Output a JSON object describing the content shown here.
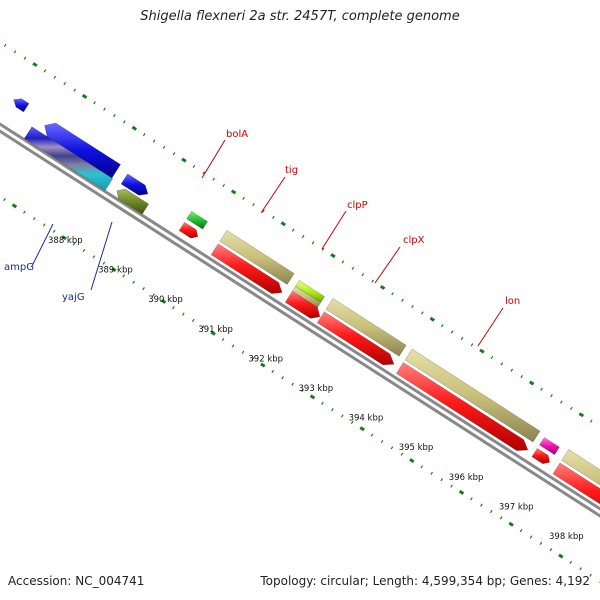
{
  "header": {
    "title": "Shigella flexneri 2a str. 2457T, complete genome"
  },
  "footer": {
    "accession": "Accession: NC_004741",
    "summary": "Topology: circular; Length: 4,599,354 bp; Genes: 4,192"
  },
  "genes": [
    {
      "name": "ampG",
      "label_color": "#1a2aa0"
    },
    {
      "name": "yajG",
      "label_color": "#1a2aa0"
    },
    {
      "name": "bolA",
      "label_color": "#cc0000"
    },
    {
      "name": "tig",
      "label_color": "#cc0000"
    },
    {
      "name": "clpP",
      "label_color": "#cc0000"
    },
    {
      "name": "clpX",
      "label_color": "#cc0000"
    },
    {
      "name": "lon",
      "label_color": "#cc0000"
    }
  ],
  "ruler": {
    "labels": [
      "388 kbp",
      "389 kbp",
      "390 kbp",
      "391 kbp",
      "392 kbp",
      "393 kbp",
      "394 kbp",
      "395 kbp",
      "396 kbp",
      "397 kbp",
      "398 kbp"
    ]
  },
  "colors": {
    "cds_forward": "#c8c07a",
    "cds_reverse": "#ff1a1a",
    "gene_blue": "#1010e0",
    "backbone": "#888888",
    "tick": "#1a7a1a"
  }
}
